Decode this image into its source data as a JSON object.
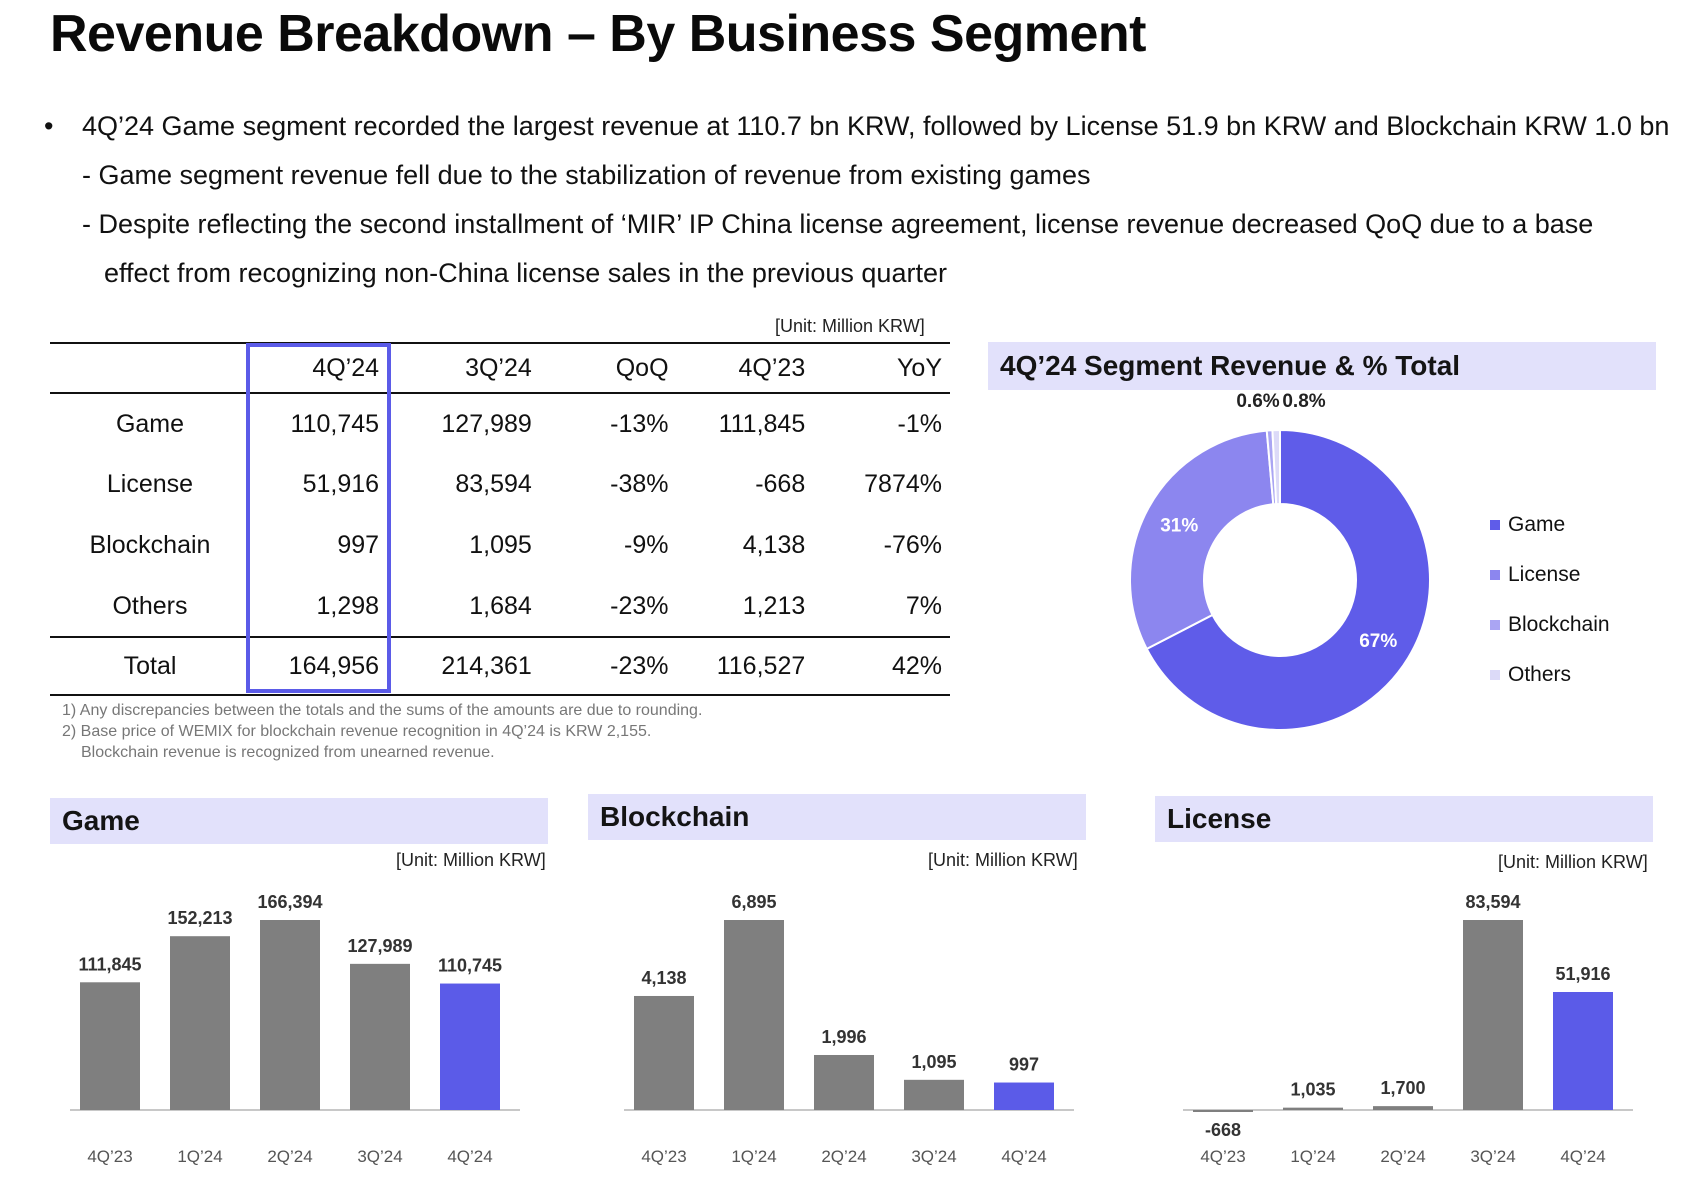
{
  "title": "Revenue Breakdown – By Business Segment",
  "bullets": {
    "main": "4Q’24 Game segment recorded the largest revenue at 110.7 bn KRW, followed by License 51.9 bn KRW and Blockchain KRW 1.0 bn",
    "sub1": "- Game segment revenue fell due to the stabilization of revenue from existing games",
    "sub2_line1": "- Despite reflecting the second installment of ‘MIR’ IP China license agreement, license revenue decreased QoQ due to a base",
    "sub2_line2": "effect from recognizing non-China license sales in the previous quarter"
  },
  "table": {
    "unit": "[Unit: Million KRW]",
    "headers": [
      "4Q’24",
      "3Q’24",
      "QoQ",
      "4Q’23",
      "YoY"
    ],
    "rows": [
      {
        "name": "Game",
        "v": [
          "110,745",
          "127,989",
          "-13%",
          "111,845",
          "-1%"
        ]
      },
      {
        "name": "License",
        "v": [
          "51,916",
          "83,594",
          "-38%",
          "-668",
          "7874%"
        ]
      },
      {
        "name": "Blockchain",
        "v": [
          "997",
          "1,095",
          "-9%",
          "4,138",
          "-76%"
        ]
      },
      {
        "name": "Others",
        "v": [
          "1,298",
          "1,684",
          "-23%",
          "1,213",
          "7%"
        ]
      }
    ],
    "total": {
      "name": "Total",
      "v": [
        "164,956",
        "214,361",
        "-23%",
        "116,527",
        "42%"
      ]
    }
  },
  "notes": [
    "1) Any discrepancies between the totals and the sums of the amounts are due to rounding.",
    "2) Base price of WEMIX for blockchain revenue recognition in 4Q’24 is KRW 2,155.",
    "Blockchain revenue is recognized from unearned revenue."
  ],
  "colors": {
    "accent": "#5b5be8",
    "bar_gray": "#7f7f7f",
    "panel_bg": "#e2e1fb",
    "game": "#5f5ce9",
    "license": "#8c86ef",
    "blockchain": "#aaa5f3",
    "others": "#dcdaf8"
  },
  "chart_data": [
    {
      "type": "pie",
      "title": "4Q’24 Segment Revenue & % Total",
      "categories": [
        "Game",
        "License",
        "Blockchain",
        "Others"
      ],
      "values": [
        67,
        31,
        0.6,
        0.8
      ],
      "labels": [
        "67%",
        "31%",
        "0.6%",
        "0.8%"
      ],
      "legend": "right"
    },
    {
      "type": "bar",
      "title": "Game",
      "unit": "[Unit: Million KRW]",
      "categories": [
        "4Q’23",
        "1Q’24",
        "2Q’24",
        "3Q’24",
        "4Q’24"
      ],
      "values": [
        111845,
        152213,
        166394,
        127989,
        110745
      ],
      "labels": [
        "111,845",
        "152,213",
        "166,394",
        "127,989",
        "110,745"
      ],
      "highlight": "4Q’24"
    },
    {
      "type": "bar",
      "title": "Blockchain",
      "unit": "[Unit: Million KRW]",
      "categories": [
        "4Q’23",
        "1Q’24",
        "2Q’24",
        "3Q’24",
        "4Q’24"
      ],
      "values": [
        4138,
        6895,
        1996,
        1095,
        997
      ],
      "labels": [
        "4,138",
        "6,895",
        "1,996",
        "1,095",
        "997"
      ],
      "highlight": "4Q’24"
    },
    {
      "type": "bar",
      "title": "License",
      "unit": "[Unit: Million KRW]",
      "categories": [
        "4Q’23",
        "1Q’24",
        "2Q’24",
        "3Q’24",
        "4Q’24"
      ],
      "values": [
        -668,
        1035,
        1700,
        83594,
        51916
      ],
      "labels": [
        "-668",
        "1,035",
        "1,700",
        "83,594",
        "51,916"
      ],
      "highlight": "4Q’24"
    }
  ]
}
